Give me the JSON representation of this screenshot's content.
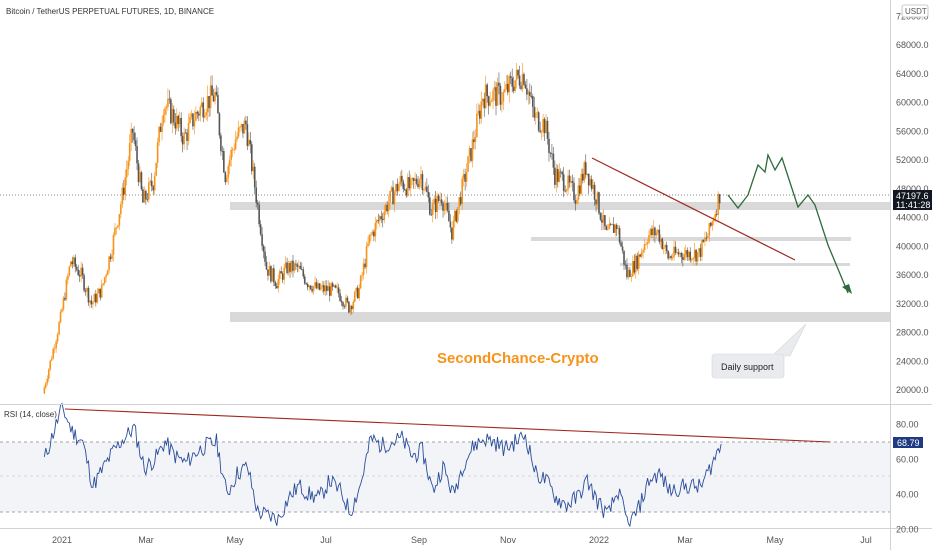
{
  "header": {
    "title": "Bitcoin / TetherUS PERPETUAL FUTURES, 1D, BINANCE"
  },
  "price_axis": {
    "currency": "USDT",
    "ticks": [
      "72000.0",
      "68000.0",
      "64000.0",
      "60000.0",
      "56000.0",
      "52000.0",
      "48000.0",
      "44000.0",
      "40000.0",
      "36000.0",
      "32000.0",
      "28000.0",
      "24000.0",
      "20000.0"
    ]
  },
  "rsi_axis": {
    "ticks": [
      "80.00",
      "60.00",
      "40.00",
      "20.00"
    ]
  },
  "time_axis": {
    "labels": [
      "2021",
      "Mar",
      "May",
      "Jul",
      "Sep",
      "Nov",
      "2022",
      "Mar",
      "May",
      "Jul"
    ]
  },
  "last_price": {
    "value": "47197.6",
    "countdown": "11:41:28"
  },
  "rsi": {
    "label": "RSI (14, close)",
    "value": "68.79"
  },
  "annotations": {
    "brand": "SecondChance-Crypto",
    "callout": "Daily support"
  },
  "colors": {
    "candle_up": "#f7931a",
    "candle_down": "#555555",
    "rsi_line": "#2a4d9b",
    "trend_line": "#a0281f",
    "projection": "#2e6b3a",
    "support_zone": "#d9d9d9"
  },
  "chart_data": [
    {
      "type": "candlestick",
      "title": "Bitcoin / TetherUS PERPETUAL FUTURES, 1D, BINANCE",
      "ylim": [
        18000,
        72000
      ],
      "x": [
        "2020-12-20",
        "2021-01-01",
        "2021-01-08",
        "2021-01-15",
        "2021-01-22",
        "2021-01-29",
        "2021-02-05",
        "2021-02-12",
        "2021-02-19",
        "2021-02-26",
        "2021-03-05",
        "2021-03-12",
        "2021-03-19",
        "2021-03-26",
        "2021-04-02",
        "2021-04-09",
        "2021-04-16",
        "2021-04-23",
        "2021-04-30",
        "2021-05-07",
        "2021-05-14",
        "2021-05-21",
        "2021-05-28",
        "2021-06-04",
        "2021-06-11",
        "2021-06-18",
        "2021-06-25",
        "2021-07-02",
        "2021-07-09",
        "2021-07-16",
        "2021-07-23",
        "2021-07-30",
        "2021-08-06",
        "2021-08-13",
        "2021-08-20",
        "2021-08-27",
        "2021-09-03",
        "2021-09-10",
        "2021-09-17",
        "2021-09-24",
        "2021-10-01",
        "2021-10-08",
        "2021-10-15",
        "2021-10-22",
        "2021-10-29",
        "2021-11-05",
        "2021-11-12",
        "2021-11-19",
        "2021-11-26",
        "2021-12-03",
        "2021-12-10",
        "2021-12-17",
        "2021-12-24",
        "2021-12-31",
        "2022-01-07",
        "2022-01-14",
        "2022-01-21",
        "2022-01-28",
        "2022-02-04",
        "2022-02-11",
        "2022-02-18",
        "2022-02-25",
        "2022-03-04",
        "2022-03-11",
        "2022-03-18",
        "2022-03-25"
      ],
      "close": [
        19500,
        30000,
        38000,
        36000,
        32000,
        34000,
        40000,
        47000,
        56000,
        46000,
        49000,
        60000,
        58000,
        55000,
        58000,
        60000,
        61000,
        50000,
        55000,
        57000,
        47000,
        37000,
        35000,
        37000,
        37000,
        35000,
        34000,
        34000,
        33500,
        31500,
        34000,
        41000,
        44000,
        46500,
        49000,
        48000,
        50000,
        45000,
        47000,
        42000,
        48000,
        54000,
        61000,
        61000,
        61000,
        63000,
        64000,
        58000,
        57000,
        50000,
        49000,
        47000,
        51000,
        47000,
        41500,
        43000,
        36000,
        38000,
        41500,
        42000,
        38500,
        39000,
        39000,
        39000,
        42000,
        47197.6
      ],
      "series": [
        {
          "name": "RSI (14, close)",
          "values": [
            60,
            90,
            76,
            70,
            45,
            55,
            65,
            72,
            78,
            55,
            60,
            70,
            62,
            58,
            64,
            68,
            70,
            40,
            52,
            56,
            30,
            28,
            26,
            38,
            45,
            40,
            38,
            48,
            42,
            30,
            46,
            72,
            68,
            70,
            72,
            62,
            65,
            42,
            56,
            40,
            58,
            68,
            72,
            70,
            66,
            70,
            74,
            52,
            48,
            38,
            34,
            38,
            48,
            36,
            28,
            42,
            22,
            32,
            48,
            52,
            42,
            44,
            45,
            44,
            56,
            68.79
          ]
        }
      ]
    }
  ]
}
